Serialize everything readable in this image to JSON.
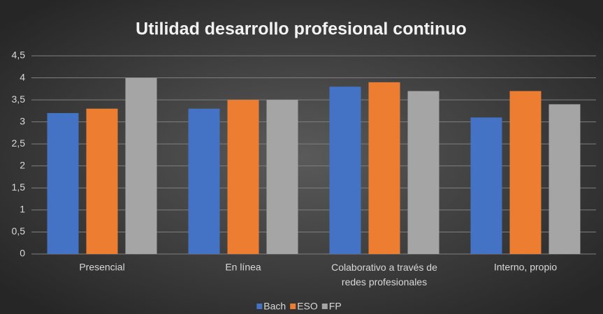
{
  "chart_data": {
    "type": "bar",
    "title": "Utilidad desarrollo profesional continuo",
    "categories": [
      "Presencial",
      "En línea",
      "Colaborativo a través de redes profesionales",
      "Interno, propio"
    ],
    "series": [
      {
        "name": "Bach",
        "color": "#4472c4",
        "values": [
          3.2,
          3.3,
          3.8,
          3.1
        ]
      },
      {
        "name": "ESO",
        "color": "#ed7d31",
        "values": [
          3.3,
          3.5,
          3.9,
          3.7
        ]
      },
      {
        "name": "FP",
        "color": "#a5a5a5",
        "values": [
          4.0,
          3.5,
          3.7,
          3.4
        ]
      }
    ],
    "ylim": [
      0,
      4.5
    ],
    "yticks": [
      0,
      {
        "value": 0.5,
        "label": "0,5"
      },
      1,
      {
        "value": 1.5,
        "label": "1,5"
      },
      2,
      {
        "value": 2.5,
        "label": "2,5"
      },
      3,
      {
        "value": 3.5,
        "label": "3,5"
      },
      4,
      {
        "value": 4.5,
        "label": "4,5"
      }
    ],
    "grid": true,
    "legend": "bottom"
  }
}
